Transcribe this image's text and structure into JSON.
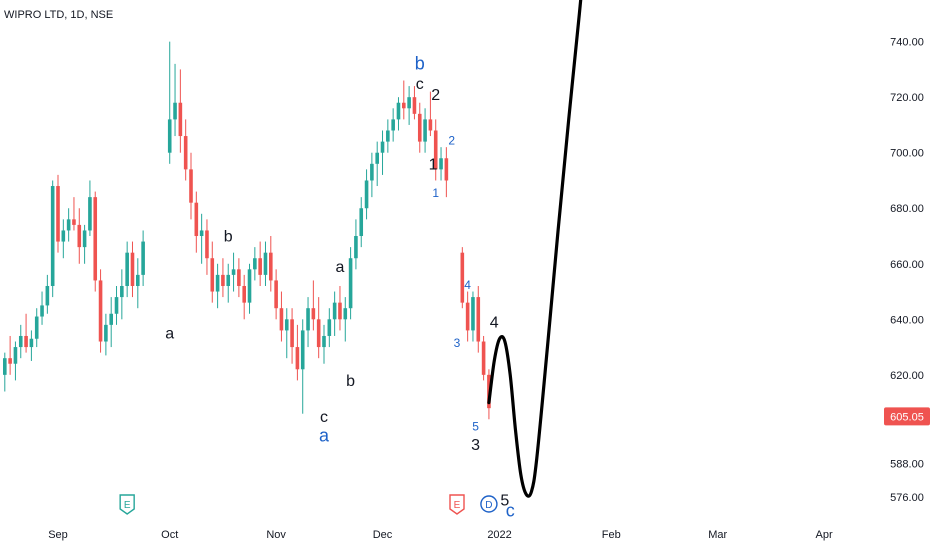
{
  "symbol_header": "WIPRO LTD, 1D, NSE",
  "colors": {
    "up": "#26a69a",
    "down": "#ef5350",
    "wave_blue": "#1e62c8",
    "wave_dark": "#131722",
    "path": "#000000"
  },
  "chart_data": {
    "type": "candlestick",
    "y_ticks": [
      "740.00",
      "720.00",
      "700.00",
      "680.00",
      "660.00",
      "640.00",
      "620.00",
      "605.05",
      "588.00",
      "576.00"
    ],
    "ylim": [
      567,
      755
    ],
    "current_price": "605.05",
    "x_labels": [
      {
        "label": "Sep",
        "x": 0
      },
      {
        "label": "Oct",
        "x": 21
      },
      {
        "label": "Nov",
        "x": 41
      },
      {
        "label": "Dec",
        "x": 61
      },
      {
        "label": "2022",
        "x": 83
      },
      {
        "label": "Feb",
        "x": 104
      },
      {
        "label": "Mar",
        "x": 124
      },
      {
        "label": "Apr",
        "x": 144
      }
    ],
    "ohlc": [
      [
        -10,
        620,
        628,
        614,
        626
      ],
      [
        -9,
        626,
        634,
        620,
        624
      ],
      [
        -8,
        624,
        632,
        618,
        630
      ],
      [
        -7,
        630,
        638,
        626,
        634
      ],
      [
        -6,
        634,
        642,
        628,
        630
      ],
      [
        -5,
        630,
        636,
        625,
        633
      ],
      [
        -4,
        633,
        644,
        630,
        641
      ],
      [
        -3,
        641,
        650,
        638,
        645
      ],
      [
        -2,
        645,
        656,
        642,
        652
      ],
      [
        -1,
        652,
        690,
        648,
        688
      ],
      [
        0,
        688,
        692,
        664,
        668
      ],
      [
        1,
        668,
        676,
        662,
        672
      ],
      [
        2,
        672,
        680,
        668,
        676
      ],
      [
        3,
        676,
        684,
        672,
        674
      ],
      [
        4,
        674,
        680,
        660,
        666
      ],
      [
        5,
        666,
        674,
        660,
        672
      ],
      [
        6,
        672,
        690,
        670,
        684
      ],
      [
        7,
        684,
        686,
        650,
        654
      ],
      [
        8,
        654,
        658,
        628,
        632
      ],
      [
        9,
        632,
        642,
        627,
        638
      ],
      [
        10,
        638,
        648,
        630,
        642
      ],
      [
        11,
        642,
        652,
        638,
        648
      ],
      [
        12,
        648,
        658,
        640,
        652
      ],
      [
        13,
        652,
        668,
        648,
        664
      ],
      [
        14,
        664,
        668,
        648,
        652
      ],
      [
        15,
        652,
        662,
        644,
        656
      ],
      [
        16,
        656,
        672,
        652,
        668
      ],
      [
        21,
        700,
        740,
        696,
        712
      ],
      [
        22,
        712,
        732,
        706,
        718
      ],
      [
        23,
        718,
        730,
        700,
        706
      ],
      [
        24,
        706,
        712,
        690,
        694
      ],
      [
        25,
        694,
        700,
        676,
        682
      ],
      [
        26,
        682,
        686,
        664,
        670
      ],
      [
        27,
        670,
        678,
        660,
        672
      ],
      [
        28,
        672,
        676,
        656,
        662
      ],
      [
        29,
        662,
        668,
        646,
        650
      ],
      [
        30,
        650,
        660,
        644,
        656
      ],
      [
        31,
        656,
        662,
        648,
        652
      ],
      [
        32,
        652,
        660,
        646,
        656
      ],
      [
        33,
        656,
        664,
        650,
        658
      ],
      [
        34,
        658,
        662,
        648,
        652
      ],
      [
        35,
        652,
        656,
        640,
        646
      ],
      [
        36,
        646,
        660,
        642,
        658
      ],
      [
        37,
        658,
        666,
        654,
        662
      ],
      [
        38,
        662,
        668,
        652,
        656
      ],
      [
        39,
        656,
        668,
        652,
        664
      ],
      [
        40,
        664,
        670,
        650,
        654
      ],
      [
        41,
        654,
        658,
        640,
        644
      ],
      [
        42,
        644,
        650,
        632,
        636
      ],
      [
        43,
        636,
        644,
        626,
        640
      ],
      [
        44,
        640,
        644,
        624,
        630
      ],
      [
        45,
        630,
        638,
        618,
        622
      ],
      [
        46,
        622,
        640,
        606,
        636
      ],
      [
        47,
        636,
        648,
        630,
        644
      ],
      [
        48,
        644,
        654,
        636,
        640
      ],
      [
        49,
        640,
        648,
        626,
        630
      ],
      [
        50,
        630,
        638,
        624,
        634
      ],
      [
        51,
        634,
        644,
        630,
        640
      ],
      [
        52,
        640,
        650,
        634,
        646
      ],
      [
        53,
        646,
        652,
        636,
        640
      ],
      [
        54,
        640,
        648,
        632,
        644
      ],
      [
        55,
        644,
        666,
        640,
        662
      ],
      [
        56,
        662,
        676,
        658,
        670
      ],
      [
        57,
        670,
        684,
        666,
        680
      ],
      [
        58,
        680,
        694,
        676,
        690
      ],
      [
        59,
        690,
        700,
        684,
        696
      ],
      [
        60,
        696,
        704,
        688,
        700
      ],
      [
        61,
        700,
        708,
        692,
        704
      ],
      [
        62,
        704,
        712,
        700,
        708
      ],
      [
        63,
        708,
        716,
        704,
        712
      ],
      [
        64,
        712,
        720,
        708,
        718
      ],
      [
        65,
        718,
        726,
        712,
        716
      ],
      [
        66,
        716,
        724,
        710,
        720
      ],
      [
        67,
        720,
        724,
        712,
        714
      ],
      [
        68,
        714,
        718,
        700,
        704
      ],
      [
        69,
        704,
        716,
        700,
        712
      ],
      [
        70,
        712,
        722,
        706,
        708
      ],
      [
        71,
        708,
        712,
        690,
        694
      ],
      [
        72,
        694,
        702,
        690,
        698
      ],
      [
        73,
        698,
        702,
        684,
        690
      ],
      [
        76,
        664,
        666,
        644,
        646
      ],
      [
        77,
        646,
        650,
        632,
        636
      ],
      [
        78,
        636,
        650,
        632,
        648
      ],
      [
        79,
        648,
        652,
        628,
        632
      ],
      [
        80,
        632,
        634,
        618,
        620
      ],
      [
        81,
        620,
        622,
        604,
        608
      ]
    ],
    "price_path": [
      [
        81,
        610
      ],
      [
        82,
        625
      ],
      [
        83,
        633
      ],
      [
        84,
        632
      ],
      [
        85,
        620
      ],
      [
        86,
        600
      ],
      [
        87,
        584
      ],
      [
        88,
        577
      ],
      [
        89,
        578
      ],
      [
        90,
        590
      ],
      [
        92,
        630
      ],
      [
        94,
        672
      ],
      [
        96,
        712
      ],
      [
        98,
        750
      ],
      [
        99,
        770
      ]
    ],
    "wave_labels": [
      {
        "text": "b",
        "x": 68,
        "y": 730,
        "color": "blue",
        "size": "big"
      },
      {
        "text": "c",
        "x": 68,
        "y": 723,
        "color": "dark"
      },
      {
        "text": "2",
        "x": 71,
        "y": 719,
        "color": "dark"
      },
      {
        "text": "2",
        "x": 74,
        "y": 703,
        "color": "blue",
        "size": "small"
      },
      {
        "text": "1",
        "x": 70.5,
        "y": 694,
        "color": "dark"
      },
      {
        "text": "1",
        "x": 71,
        "y": 684,
        "color": "blue",
        "size": "small"
      },
      {
        "text": "b",
        "x": 32,
        "y": 668,
        "color": "dark"
      },
      {
        "text": "a",
        "x": 21,
        "y": 633,
        "color": "dark"
      },
      {
        "text": "a",
        "x": 53,
        "y": 657,
        "color": "dark"
      },
      {
        "text": "b",
        "x": 55,
        "y": 616,
        "color": "dark"
      },
      {
        "text": "c",
        "x": 50,
        "y": 603,
        "color": "dark"
      },
      {
        "text": "a",
        "x": 50,
        "y": 596,
        "color": "blue",
        "size": "big"
      },
      {
        "text": "4",
        "x": 77,
        "y": 651,
        "color": "blue",
        "size": "small"
      },
      {
        "text": "3",
        "x": 75,
        "y": 630,
        "color": "blue",
        "size": "small"
      },
      {
        "text": "4",
        "x": 82,
        "y": 637,
        "color": "dark"
      },
      {
        "text": "5",
        "x": 78.5,
        "y": 600,
        "color": "blue",
        "size": "small"
      },
      {
        "text": "3",
        "x": 78.5,
        "y": 593,
        "color": "dark"
      },
      {
        "text": "5",
        "x": 84,
        "y": 573,
        "color": "dark"
      },
      {
        "text": "c",
        "x": 85,
        "y": 569,
        "color": "blue",
        "size": "big"
      }
    ],
    "event_markers": [
      {
        "text": "E",
        "x": 13,
        "kind": "earnings-past"
      },
      {
        "text": "E",
        "x": 75,
        "kind": "earnings-upcoming"
      },
      {
        "text": "D",
        "x": 81,
        "kind": "dividend"
      }
    ]
  }
}
